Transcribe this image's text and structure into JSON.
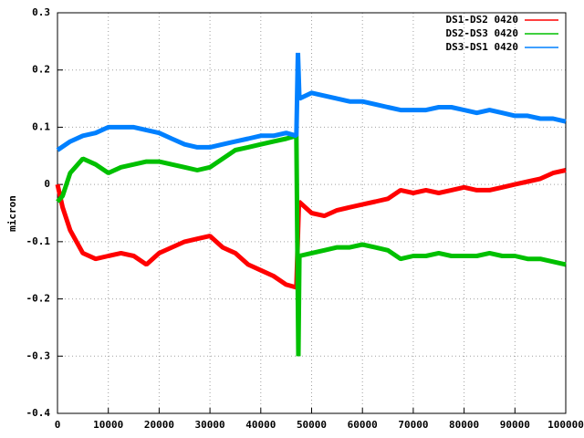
{
  "chart_data": {
    "type": "line",
    "ylabel": "micron",
    "xlim": [
      0,
      100000
    ],
    "xticks": [
      0,
      10000,
      20000,
      30000,
      40000,
      50000,
      60000,
      70000,
      80000,
      90000,
      100000
    ],
    "ylim": [
      -0.4,
      0.3
    ],
    "yticks": [
      -0.4,
      -0.3,
      -0.2,
      -0.1,
      0,
      0.1,
      0.2,
      0.3
    ],
    "grid": true,
    "legend": "top-right",
    "series": [
      {
        "name": "DS1-DS2 0420",
        "color": "#ff0000",
        "x": [
          0,
          1000,
          2500,
          5000,
          7500,
          10000,
          12500,
          15000,
          17500,
          20000,
          22500,
          25000,
          27500,
          30000,
          32500,
          35000,
          37500,
          40000,
          42500,
          45000,
          47000,
          47500,
          50000,
          52500,
          55000,
          57500,
          60000,
          62500,
          65000,
          67500,
          70000,
          72500,
          75000,
          77500,
          80000,
          82500,
          85000,
          87500,
          90000,
          92500,
          95000,
          97500,
          100000
        ],
        "values": [
          0,
          -0.04,
          -0.08,
          -0.12,
          -0.13,
          -0.125,
          -0.12,
          -0.125,
          -0.14,
          -0.12,
          -0.11,
          -0.1,
          -0.095,
          -0.09,
          -0.11,
          -0.12,
          -0.14,
          -0.15,
          -0.16,
          -0.175,
          -0.18,
          -0.03,
          -0.05,
          -0.055,
          -0.045,
          -0.04,
          -0.035,
          -0.03,
          -0.025,
          -0.01,
          -0.015,
          -0.01,
          -0.015,
          -0.01,
          -0.005,
          -0.01,
          -0.01,
          -0.005,
          0,
          0.005,
          0.01,
          0.02,
          0.025
        ]
      },
      {
        "name": "DS2-DS3 0420",
        "color": "#00c000",
        "x": [
          0,
          1000,
          2500,
          5000,
          7500,
          10000,
          12500,
          15000,
          17500,
          20000,
          22500,
          25000,
          27500,
          30000,
          32500,
          35000,
          37500,
          40000,
          42500,
          45000,
          47000,
          47400,
          47600,
          50000,
          52500,
          55000,
          57500,
          60000,
          62500,
          65000,
          67500,
          70000,
          72500,
          75000,
          77500,
          80000,
          82500,
          85000,
          87500,
          90000,
          92500,
          95000,
          97500,
          100000
        ],
        "values": [
          -0.03,
          -0.02,
          0.02,
          0.045,
          0.035,
          0.02,
          0.03,
          0.035,
          0.04,
          0.04,
          0.035,
          0.03,
          0.025,
          0.03,
          0.045,
          0.06,
          0.065,
          0.07,
          0.075,
          0.08,
          0.085,
          -0.3,
          -0.125,
          -0.12,
          -0.115,
          -0.11,
          -0.11,
          -0.105,
          -0.11,
          -0.115,
          -0.13,
          -0.125,
          -0.125,
          -0.12,
          -0.125,
          -0.125,
          -0.125,
          -0.12,
          -0.125,
          -0.125,
          -0.13,
          -0.13,
          -0.135,
          -0.14
        ]
      },
      {
        "name": "DS3-DS1 0420",
        "color": "#0080ff",
        "x": [
          0,
          2500,
          5000,
          7500,
          10000,
          12500,
          15000,
          17500,
          20000,
          22500,
          25000,
          27500,
          30000,
          32500,
          35000,
          37500,
          40000,
          42500,
          45000,
          47000,
          47300,
          47600,
          50000,
          52500,
          55000,
          57500,
          60000,
          62500,
          65000,
          67500,
          70000,
          72500,
          75000,
          77500,
          80000,
          82500,
          85000,
          87500,
          90000,
          92500,
          95000,
          97500,
          100000
        ],
        "values": [
          0.06,
          0.075,
          0.085,
          0.09,
          0.1,
          0.1,
          0.1,
          0.095,
          0.09,
          0.08,
          0.07,
          0.065,
          0.065,
          0.07,
          0.075,
          0.08,
          0.085,
          0.085,
          0.09,
          0.085,
          0.23,
          0.15,
          0.16,
          0.155,
          0.15,
          0.145,
          0.145,
          0.14,
          0.135,
          0.13,
          0.13,
          0.13,
          0.135,
          0.135,
          0.13,
          0.125,
          0.13,
          0.125,
          0.12,
          0.12,
          0.115,
          0.115,
          0.11
        ]
      }
    ]
  }
}
